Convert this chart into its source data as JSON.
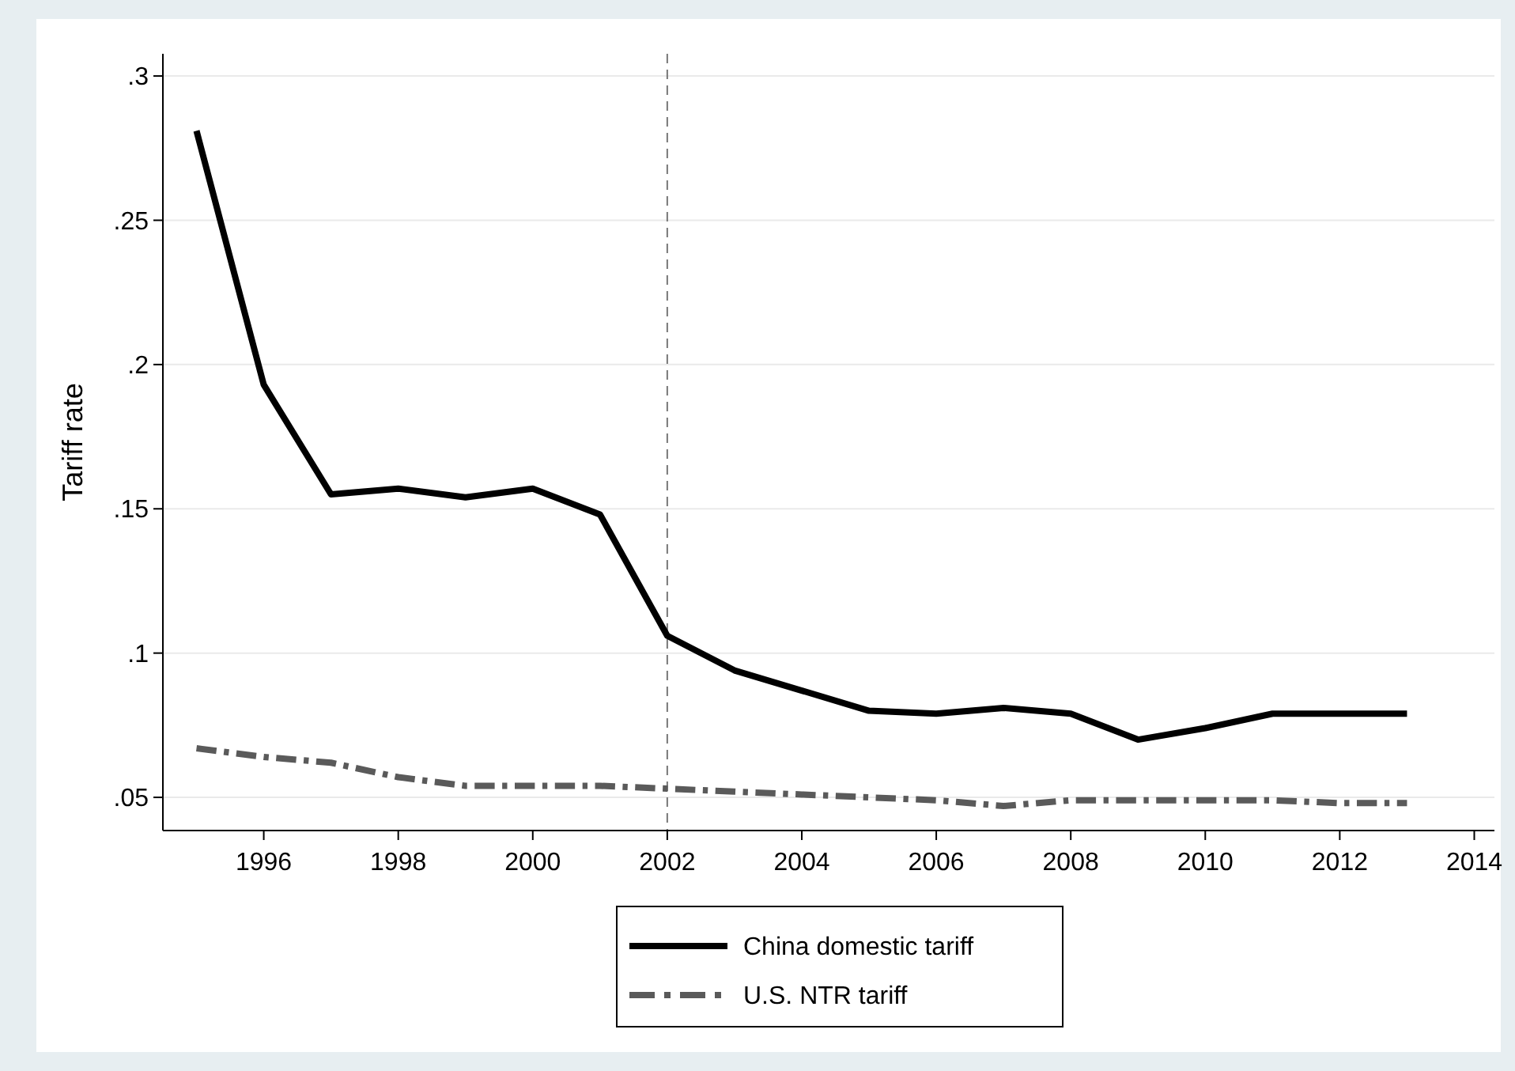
{
  "chart_data": {
    "type": "line",
    "ylabel": "Tariff rate",
    "x": [
      1995,
      1996,
      1997,
      1998,
      1999,
      2000,
      2001,
      2002,
      2003,
      2004,
      2005,
      2006,
      2007,
      2008,
      2009,
      2010,
      2011,
      2012,
      2013
    ],
    "series": [
      {
        "name": "China domestic tariff",
        "color": "#000000",
        "line_style": "solid",
        "values": [
          0.281,
          0.193,
          0.155,
          0.157,
          0.154,
          0.157,
          0.148,
          0.106,
          0.094,
          0.087,
          0.08,
          0.079,
          0.081,
          0.079,
          0.07,
          0.074,
          0.079,
          0.079,
          0.079
        ]
      },
      {
        "name": "U.S. NTR tariff",
        "color": "#5a5a5a",
        "line_style": "dashed",
        "values": [
          0.067,
          0.064,
          0.062,
          0.057,
          0.054,
          0.054,
          0.054,
          0.053,
          0.052,
          0.051,
          0.05,
          0.049,
          0.047,
          0.049,
          0.049,
          0.049,
          0.049,
          0.048,
          0.048
        ]
      }
    ],
    "xlim": [
      1994.5,
      2014.3
    ],
    "xticks": [
      1996,
      1998,
      2000,
      2002,
      2004,
      2006,
      2008,
      2010,
      2012,
      2014
    ],
    "ylim": [
      0.0385,
      0.3077
    ],
    "yticks": [
      {
        "value": 0.05,
        "label": ".05"
      },
      {
        "value": 0.1,
        "label": ".1"
      },
      {
        "value": 0.15,
        "label": ".15"
      },
      {
        "value": 0.2,
        "label": ".2"
      },
      {
        "value": 0.25,
        "label": ".25"
      },
      {
        "value": 0.3,
        "label": ".3"
      }
    ],
    "grid": "y",
    "legend": "bottom",
    "ref_lines": [
      {
        "axis": "x",
        "value": 2002,
        "color": "#777777",
        "line_style": "dashed"
      }
    ]
  }
}
